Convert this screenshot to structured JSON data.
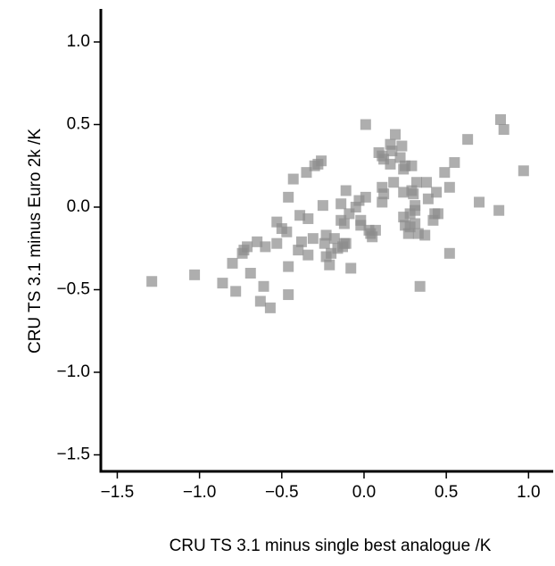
{
  "chart_data": {
    "type": "scatter",
    "x_label": "CRU TS 3.1 minus single best analogue /K",
    "y_label": "CRU TS 3.1 minus Euro 2k /K",
    "color": "#8c8c8c",
    "xlim": [
      -1.6,
      1.15
    ],
    "ylim": [
      -1.6,
      1.2
    ],
    "xticks": [
      {
        "value": -1.5,
        "label": "−1.5"
      },
      {
        "value": -1.0,
        "label": "−1.0"
      },
      {
        "value": -0.5,
        "label": "−0.5"
      },
      {
        "value": 0,
        "label": "0.0"
      },
      {
        "value": 0.5,
        "label": "0.5"
      },
      {
        "value": 1.0,
        "label": "1.0"
      }
    ],
    "yticks": [
      {
        "value": -1.5,
        "label": "−1.5"
      },
      {
        "value": -1.0,
        "label": "−1.0"
      },
      {
        "value": -0.5,
        "label": "−0.5"
      },
      {
        "value": 0,
        "label": "0.0"
      },
      {
        "value": 0.5,
        "label": "0.5"
      },
      {
        "value": 1.0,
        "label": "1.0"
      }
    ],
    "x": [
      -1.29,
      -1.03,
      -0.86,
      -0.8,
      -0.78,
      -0.73,
      -0.74,
      -0.71,
      -0.69,
      -0.65,
      -0.63,
      -0.61,
      -0.6,
      -0.57,
      -0.53,
      -0.53,
      -0.5,
      -0.47,
      -0.46,
      -0.46,
      -0.46,
      -0.43,
      -0.4,
      -0.39,
      -0.38,
      -0.35,
      -0.34,
      -0.34,
      -0.31,
      -0.3,
      -0.28,
      -0.26,
      -0.25,
      -0.24,
      -0.23,
      -0.23,
      -0.21,
      -0.2,
      -0.18,
      -0.16,
      -0.14,
      -0.14,
      -0.13,
      -0.12,
      -0.12,
      -0.11,
      -0.11,
      -0.09,
      -0.08,
      -0.05,
      -0.03,
      -0.02,
      -0.02,
      0.01,
      0.01,
      0.03,
      0.04,
      0.05,
      0.07,
      0.09,
      0.11,
      0.12,
      0.11,
      0.11,
      0.12,
      0.16,
      0.16,
      0.17,
      0.18,
      0.19,
      0.22,
      0.23,
      0.24,
      0.24,
      0.24,
      0.25,
      0.25,
      0.27,
      0.28,
      0.28,
      0.29,
      0.29,
      0.3,
      0.31,
      0.31,
      0.31,
      0.32,
      0.33,
      0.34,
      0.37,
      0.38,
      0.39,
      0.42,
      0.43,
      0.44,
      0.45,
      0.49,
      0.52,
      0.52,
      0.55,
      0.63,
      0.7,
      0.82,
      0.83,
      0.85,
      0.97
    ],
    "values": [
      -0.45,
      -0.41,
      -0.46,
      -0.34,
      -0.51,
      -0.26,
      -0.28,
      -0.24,
      -0.4,
      -0.21,
      -0.57,
      -0.48,
      -0.24,
      -0.61,
      -0.22,
      -0.09,
      -0.13,
      -0.15,
      -0.53,
      0.06,
      -0.36,
      0.17,
      -0.26,
      -0.05,
      -0.21,
      0.21,
      -0.07,
      -0.29,
      -0.19,
      0.25,
      0.26,
      0.28,
      0.01,
      -0.22,
      -0.3,
      -0.17,
      -0.35,
      -0.28,
      -0.19,
      -0.25,
      0.02,
      -0.08,
      -0.24,
      -0.22,
      -0.1,
      0.1,
      -0.22,
      -0.04,
      -0.37,
      0.0,
      0.04,
      -0.08,
      -0.11,
      0.06,
      0.5,
      -0.14,
      -0.16,
      -0.18,
      -0.14,
      0.33,
      0.31,
      0.29,
      0.12,
      0.03,
      0.08,
      0.38,
      0.26,
      0.34,
      0.15,
      0.44,
      0.3,
      0.37,
      0.23,
      0.09,
      -0.06,
      0.25,
      -0.11,
      -0.16,
      -0.12,
      -0.04,
      0.1,
      0.25,
      0.08,
      -0.02,
      -0.1,
      0.01,
      0.15,
      -0.16,
      -0.48,
      -0.17,
      0.15,
      0.05,
      -0.08,
      -0.04,
      0.09,
      -0.04,
      0.21,
      -0.28,
      0.12,
      0.27,
      0.41,
      0.03,
      -0.02,
      0.53,
      0.47,
      0.22
    ]
  }
}
